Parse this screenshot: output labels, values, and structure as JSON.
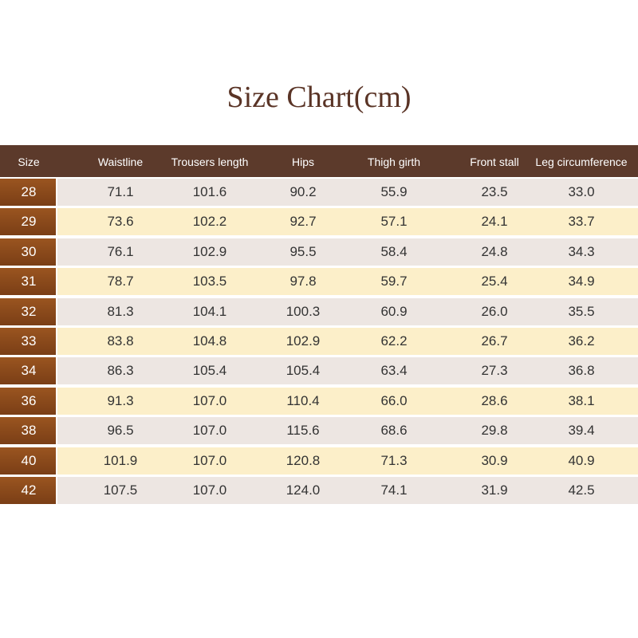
{
  "header": {
    "title": "Size Chart(cm)"
  },
  "table": {
    "columns": [
      "Size",
      "Waistline",
      "Trousers length",
      "Hips",
      "Thigh girth",
      "Front stall",
      "Leg circumference"
    ],
    "rows": [
      [
        "28",
        "71.1",
        "101.6",
        "90.2",
        "55.9",
        "23.5",
        "33.0"
      ],
      [
        "29",
        "73.6",
        "102.2",
        "92.7",
        "57.1",
        "24.1",
        "33.7"
      ],
      [
        "30",
        "76.1",
        "102.9",
        "95.5",
        "58.4",
        "24.8",
        "34.3"
      ],
      [
        "31",
        "78.7",
        "103.5",
        "97.8",
        "59.7",
        "25.4",
        "34.9"
      ],
      [
        "32",
        "81.3",
        "104.1",
        "100.3",
        "60.9",
        "26.0",
        "35.5"
      ],
      [
        "33",
        "83.8",
        "104.8",
        "102.9",
        "62.2",
        "26.7",
        "36.2"
      ],
      [
        "34",
        "86.3",
        "105.4",
        "105.4",
        "63.4",
        "27.3",
        "36.8"
      ],
      [
        "36",
        "91.3",
        "107.0",
        "110.4",
        "66.0",
        "28.6",
        "38.1"
      ],
      [
        "38",
        "96.5",
        "107.0",
        "115.6",
        "68.6",
        "29.8",
        "39.4"
      ],
      [
        "40",
        "101.9",
        "107.0",
        "120.8",
        "71.3",
        "30.9",
        "40.9"
      ],
      [
        "42",
        "107.5",
        "107.0",
        "124.0",
        "74.1",
        "31.9",
        "42.5"
      ]
    ]
  }
}
